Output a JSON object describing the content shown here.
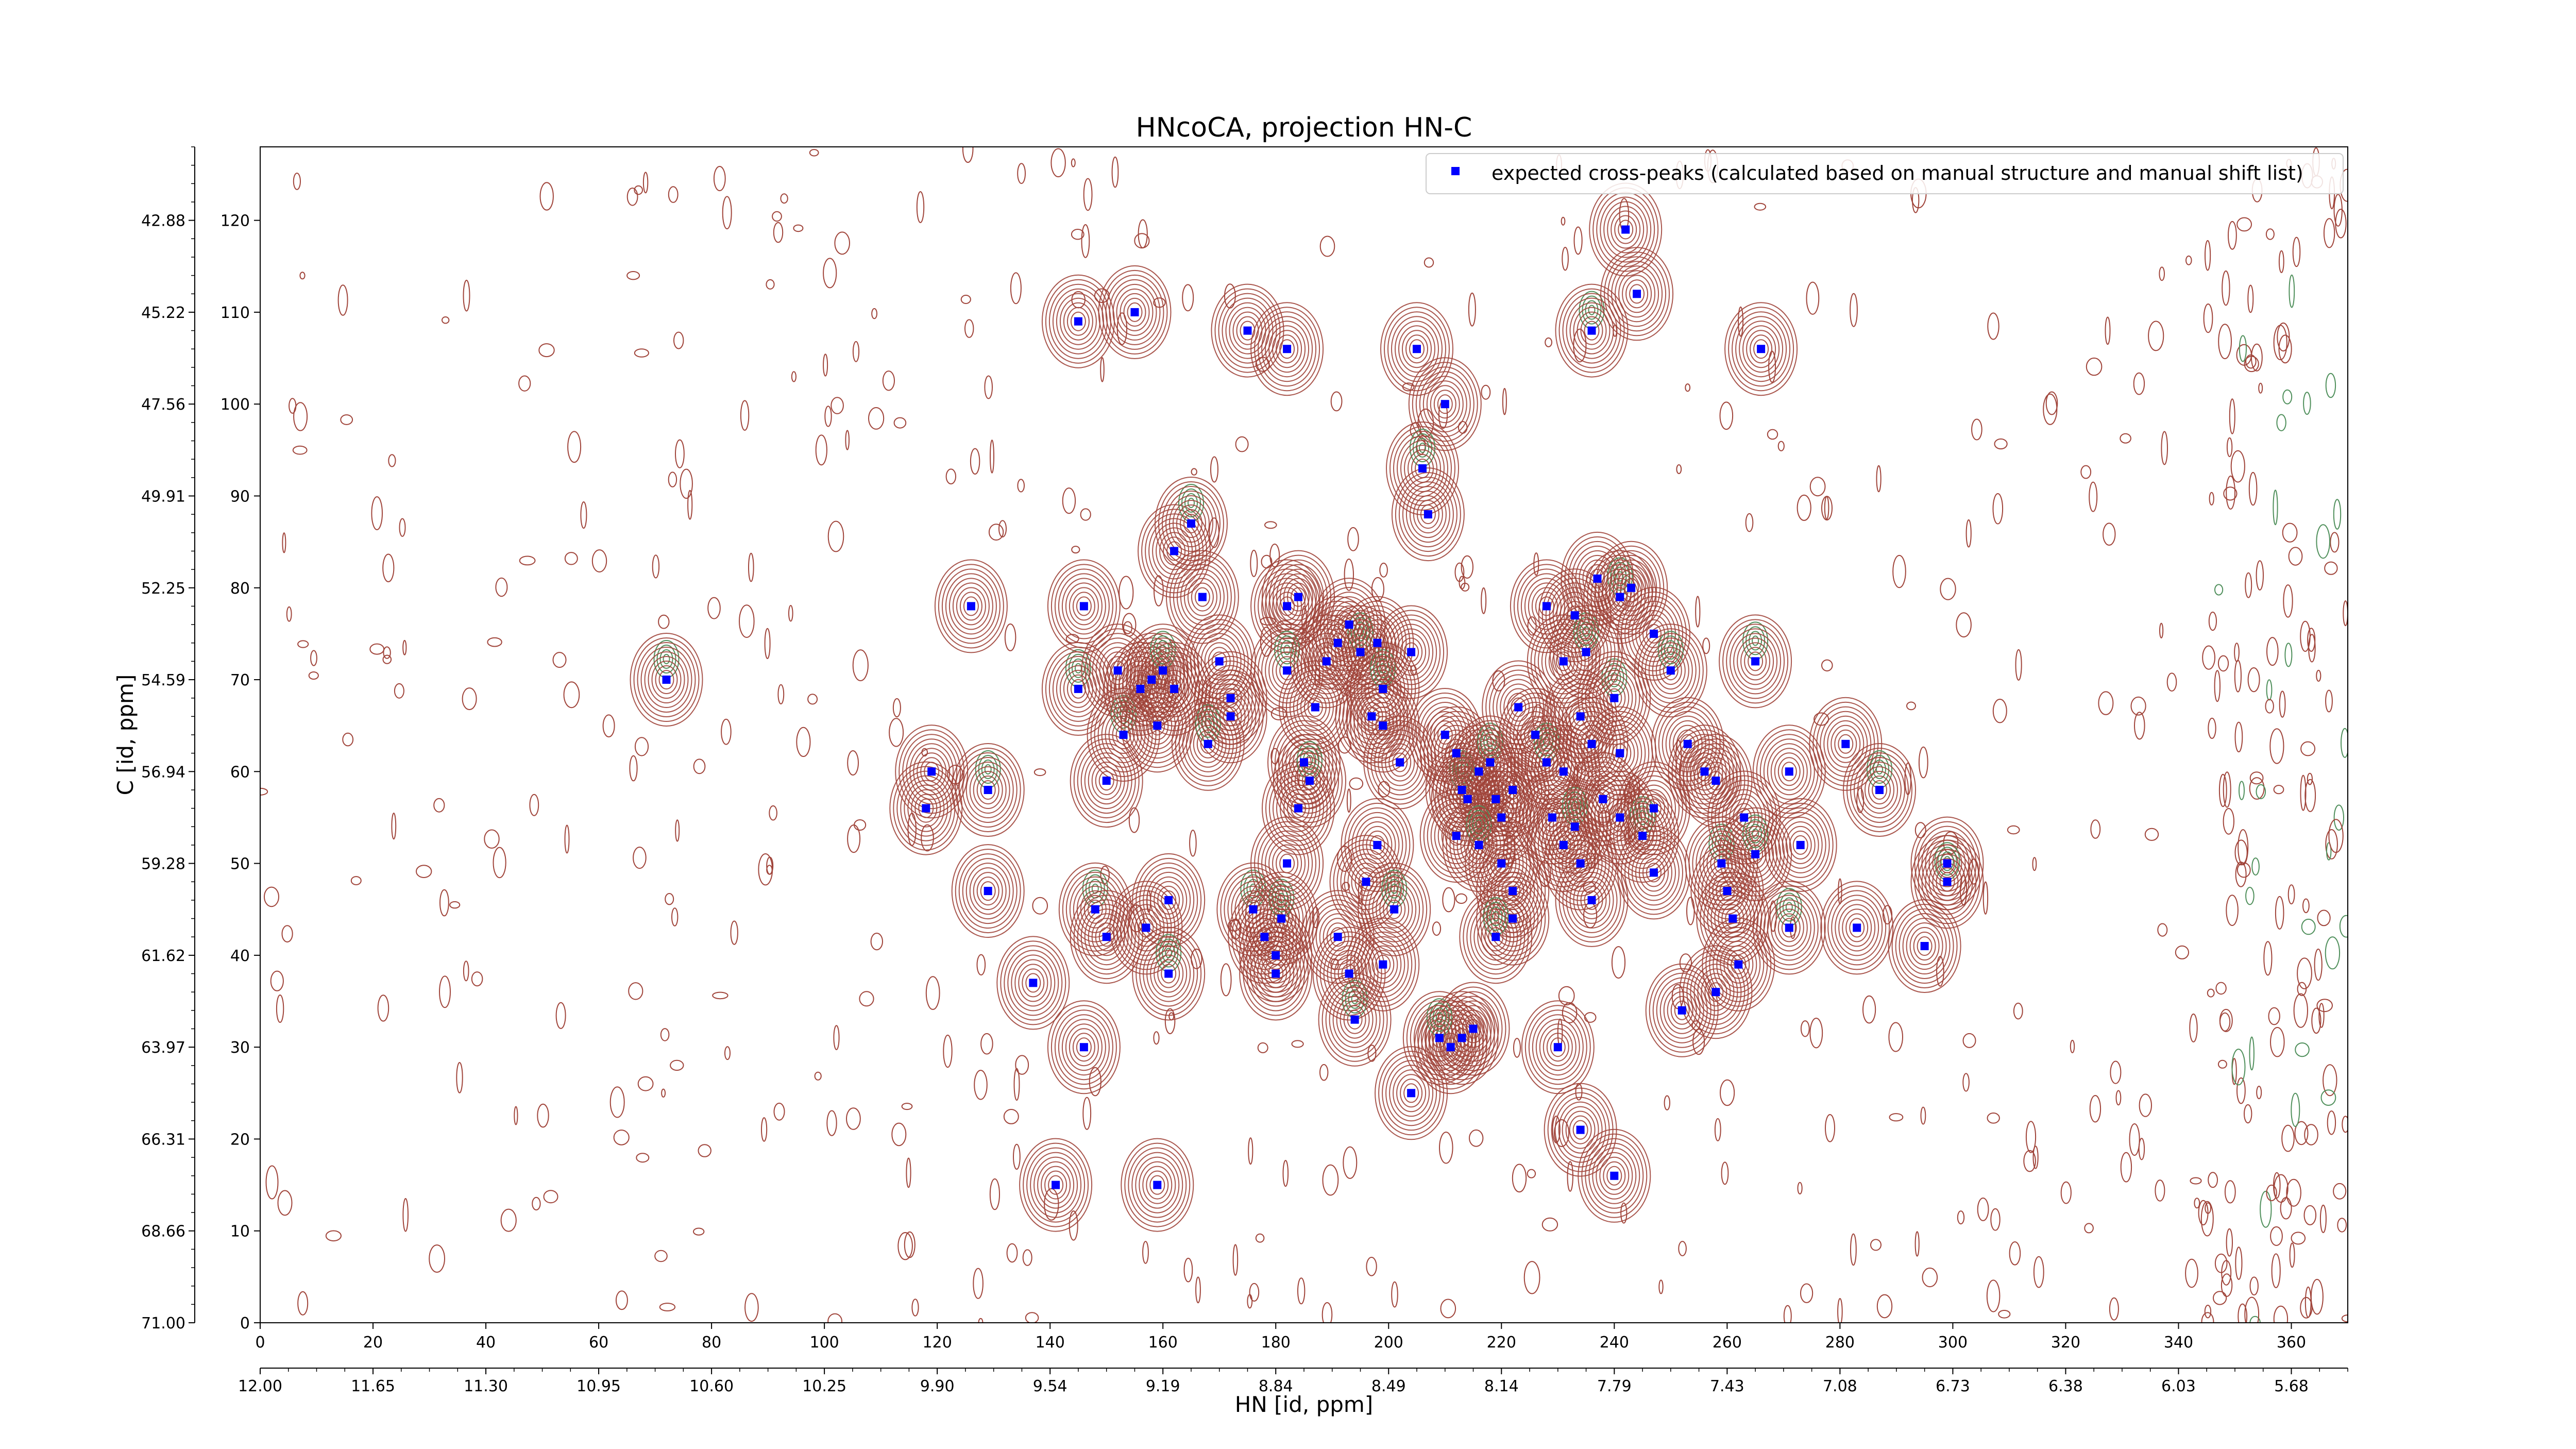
{
  "chart_data": {
    "type": "scatter",
    "title": "HNcoCA, projection HN-C",
    "xlabel": "HN [id, ppm]",
    "ylabel": "C [id, ppm]",
    "x_index_ticks": [
      "0",
      "20",
      "40",
      "60",
      "80",
      "100",
      "120",
      "140",
      "160",
      "180",
      "200",
      "220",
      "240",
      "260",
      "280",
      "300",
      "320",
      "340",
      "360"
    ],
    "x_ppm_ticks": [
      "12.00",
      "11.65",
      "11.30",
      "10.95",
      "10.60",
      "10.25",
      "9.90",
      "9.54",
      "9.19",
      "8.84",
      "8.49",
      "8.14",
      "7.79",
      "7.43",
      "7.08",
      "6.73",
      "6.38",
      "6.03",
      "5.68"
    ],
    "y_index_ticks": [
      "0",
      "10",
      "20",
      "30",
      "40",
      "50",
      "60",
      "70",
      "80",
      "90",
      "100",
      "110",
      "120"
    ],
    "y_ppm_ticks": [
      "71.00",
      "68.66",
      "66.31",
      "63.97",
      "61.62",
      "59.28",
      "56.94",
      "54.59",
      "52.25",
      "49.91",
      "47.56",
      "45.22",
      "42.88"
    ],
    "xlim": [
      0,
      370
    ],
    "ylim": [
      0,
      128
    ],
    "legend": {
      "label": "expected cross-peaks (calculated based on manual structure and manual shift list)",
      "placement": "top-right"
    },
    "grid": false,
    "colors": {
      "peaks": "#0000ff",
      "positive_contour": "#a0443a",
      "negative_contour": "#4f8f5b"
    },
    "series": [
      {
        "name": "expected cross-peaks (calculated based on manual structure and manual shift list)",
        "points": [
          [
            72,
            70
          ],
          [
            126,
            78
          ],
          [
            119,
            60
          ],
          [
            118,
            56
          ],
          [
            129,
            58
          ],
          [
            129,
            47
          ],
          [
            145,
            109
          ],
          [
            155,
            110
          ],
          [
            145,
            69
          ],
          [
            146,
            78
          ],
          [
            137,
            37
          ],
          [
            146,
            30
          ],
          [
            148,
            45
          ],
          [
            150,
            42
          ],
          [
            150,
            59
          ],
          [
            152,
            71
          ],
          [
            153,
            64
          ],
          [
            156,
            69
          ],
          [
            158,
            70
          ],
          [
            159,
            65
          ],
          [
            160,
            71
          ],
          [
            162,
            69
          ],
          [
            161,
            46
          ],
          [
            157,
            43
          ],
          [
            161,
            38
          ],
          [
            159,
            15
          ],
          [
            141,
            15
          ],
          [
            162,
            84
          ],
          [
            165,
            87
          ],
          [
            167,
            79
          ],
          [
            170,
            72
          ],
          [
            172,
            66
          ],
          [
            168,
            63
          ],
          [
            172,
            68
          ],
          [
            175,
            108
          ],
          [
            182,
            106
          ],
          [
            176,
            45
          ],
          [
            178,
            42
          ],
          [
            180,
            38
          ],
          [
            180,
            40
          ],
          [
            181,
            44
          ],
          [
            182,
            50
          ],
          [
            182,
            78
          ],
          [
            184,
            79
          ],
          [
            182,
            71
          ],
          [
            184,
            56
          ],
          [
            185,
            61
          ],
          [
            187,
            67
          ],
          [
            186,
            59
          ],
          [
            189,
            72
          ],
          [
            191,
            74
          ],
          [
            193,
            76
          ],
          [
            195,
            73
          ],
          [
            198,
            74
          ],
          [
            191,
            42
          ],
          [
            193,
            38
          ],
          [
            194,
            33
          ],
          [
            198,
            52
          ],
          [
            196,
            48
          ],
          [
            199,
            39
          ],
          [
            201,
            45
          ],
          [
            199,
            65
          ],
          [
            202,
            61
          ],
          [
            197,
            66
          ],
          [
            199,
            69
          ],
          [
            204,
            73
          ],
          [
            205,
            106
          ],
          [
            210,
            100
          ],
          [
            206,
            93
          ],
          [
            207,
            88
          ],
          [
            210,
            64
          ],
          [
            212,
            62
          ],
          [
            213,
            58
          ],
          [
            212,
            53
          ],
          [
            214,
            57
          ],
          [
            216,
            60
          ],
          [
            218,
            61
          ],
          [
            219,
            57
          ],
          [
            220,
            55
          ],
          [
            222,
            58
          ],
          [
            216,
            52
          ],
          [
            220,
            50
          ],
          [
            222,
            47
          ],
          [
            222,
            44
          ],
          [
            219,
            42
          ],
          [
            211,
            30
          ],
          [
            213,
            31
          ],
          [
            215,
            32
          ],
          [
            209,
            31
          ],
          [
            204,
            25
          ],
          [
            223,
            67
          ],
          [
            226,
            64
          ],
          [
            228,
            61
          ],
          [
            231,
            60
          ],
          [
            234,
            66
          ],
          [
            236,
            63
          ],
          [
            240,
            68
          ],
          [
            228,
            78
          ],
          [
            231,
            72
          ],
          [
            233,
            77
          ],
          [
            235,
            73
          ],
          [
            237,
            81
          ],
          [
            229,
            55
          ],
          [
            231,
            52
          ],
          [
            233,
            54
          ],
          [
            234,
            50
          ],
          [
            236,
            46
          ],
          [
            238,
            57
          ],
          [
            241,
            79
          ],
          [
            243,
            80
          ],
          [
            241,
            62
          ],
          [
            241,
            55
          ],
          [
            245,
            53
          ],
          [
            247,
            49
          ],
          [
            247,
            56
          ],
          [
            247,
            75
          ],
          [
            250,
            71
          ],
          [
            253,
            63
          ],
          [
            256,
            60
          ],
          [
            258,
            59
          ],
          [
            259,
            50
          ],
          [
            260,
            47
          ],
          [
            261,
            44
          ],
          [
            263,
            55
          ],
          [
            265,
            72
          ],
          [
            262,
            39
          ],
          [
            258,
            36
          ],
          [
            252,
            34
          ],
          [
            236,
            108
          ],
          [
            242,
            119
          ],
          [
            244,
            112
          ],
          [
            266,
            106
          ],
          [
            265,
            51
          ],
          [
            271,
            60
          ],
          [
            273,
            52
          ],
          [
            281,
            63
          ],
          [
            287,
            58
          ],
          [
            283,
            43
          ],
          [
            295,
            41
          ],
          [
            299,
            50
          ],
          [
            299,
            48
          ],
          [
            230,
            30
          ],
          [
            234,
            21
          ],
          [
            240,
            16
          ],
          [
            271,
            43
          ]
        ]
      }
    ]
  }
}
